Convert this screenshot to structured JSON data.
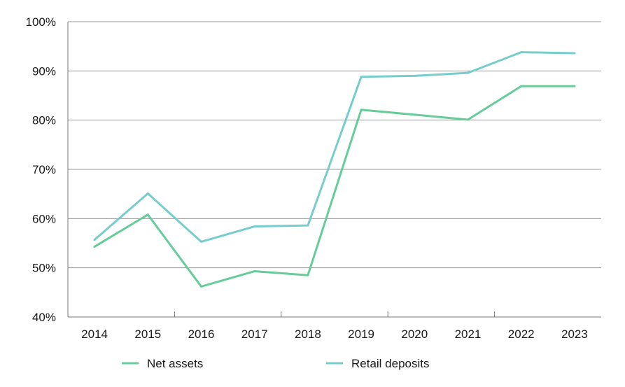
{
  "chart_data": {
    "type": "line",
    "title": "",
    "xlabel": "",
    "ylabel": "",
    "categories": [
      "2014",
      "2015",
      "2016",
      "2017",
      "2018",
      "2019",
      "2020",
      "2021",
      "2022",
      "2023"
    ],
    "series": [
      {
        "name": "Net assets",
        "color": "#66cc99",
        "values": [
          54.3,
          60.8,
          46.2,
          49.3,
          48.5,
          82.1,
          81.1,
          80.1,
          86.9,
          86.9
        ]
      },
      {
        "name": "Retail deposits",
        "color": "#77cccc",
        "values": [
          55.7,
          65.1,
          55.3,
          58.4,
          58.6,
          88.8,
          89.0,
          89.6,
          93.8,
          93.6
        ]
      }
    ],
    "ylim": [
      40,
      100
    ],
    "yticks": [
      40,
      50,
      60,
      70,
      80,
      90,
      100
    ],
    "ytick_labels": [
      "40%",
      "50%",
      "60%",
      "70%",
      "80%",
      "90%",
      "100%"
    ],
    "grid": "horizontal",
    "legend": "bottom"
  }
}
